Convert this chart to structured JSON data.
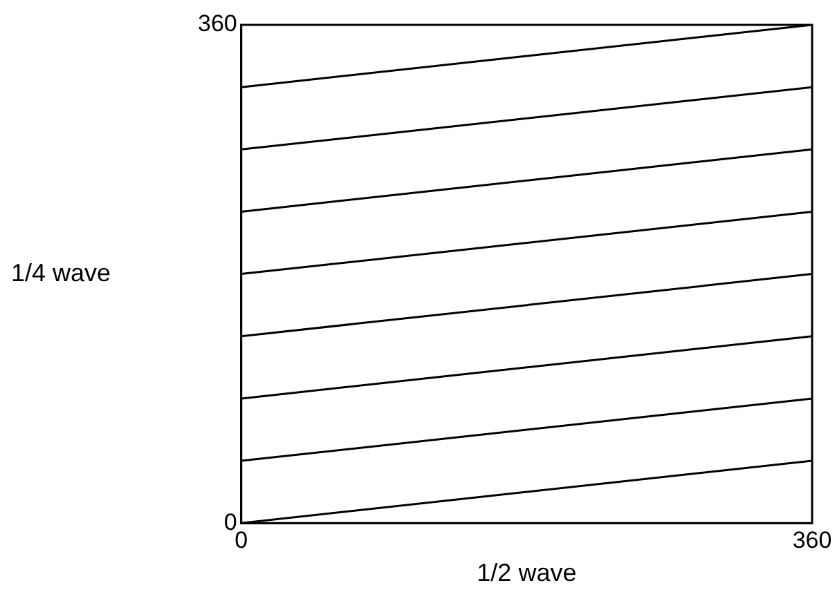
{
  "chart_data": {
    "type": "line",
    "xlabel": "1/2 wave",
    "ylabel": "1/4 wave",
    "x": [
      0,
      360
    ],
    "series": [
      {
        "color": "#000000",
        "values": [
          0,
          45
        ]
      },
      {
        "color": "#000000",
        "values": [
          45,
          90
        ]
      },
      {
        "color": "#000000",
        "values": [
          90,
          135
        ]
      },
      {
        "color": "#000000",
        "values": [
          135,
          180
        ]
      },
      {
        "color": "#000000",
        "values": [
          180,
          225
        ]
      },
      {
        "color": "#000000",
        "values": [
          225,
          270
        ]
      },
      {
        "color": "#000000",
        "values": [
          270,
          315
        ]
      },
      {
        "color": "#000000",
        "values": [
          315,
          360
        ]
      }
    ],
    "xlim": [
      0,
      360
    ],
    "ylim": [
      0,
      360
    ],
    "xticks": [
      0,
      360
    ],
    "yticks": [
      0,
      360
    ],
    "legend": false,
    "marker": "none",
    "line_style": "solid"
  }
}
